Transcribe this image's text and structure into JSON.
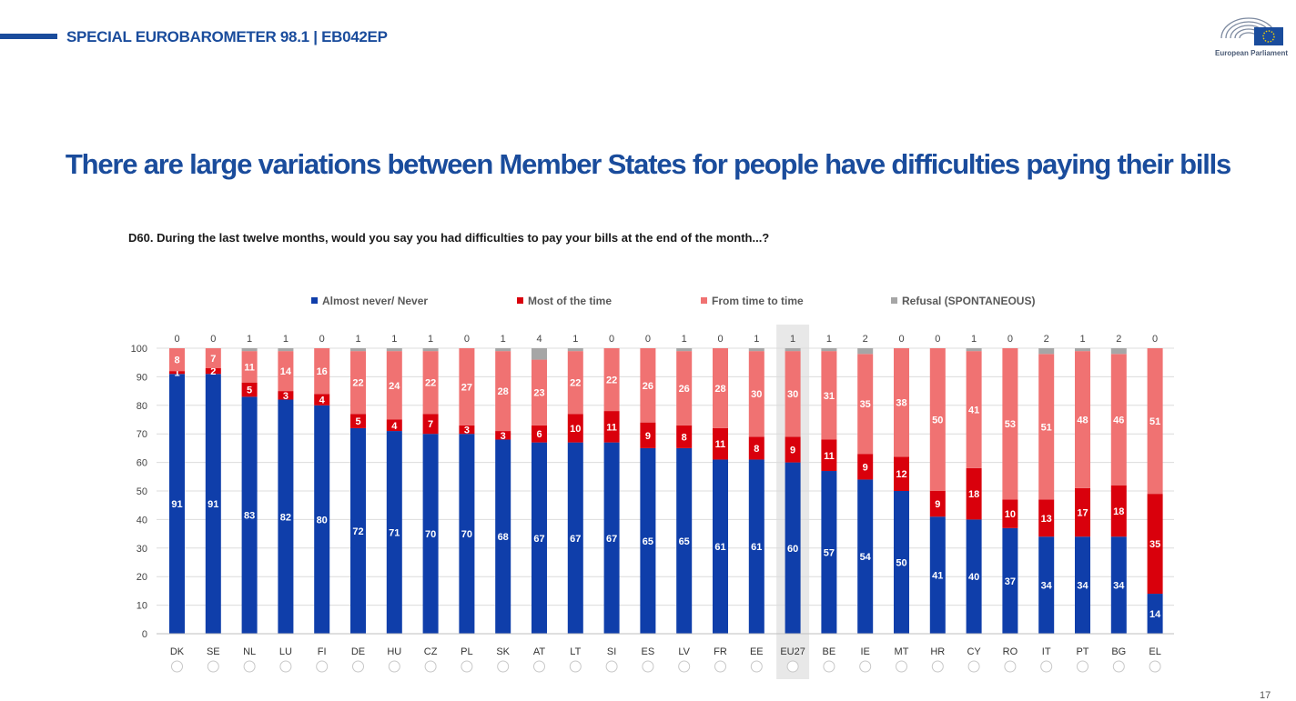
{
  "header": {
    "label": "SPECIAL EUROBAROMETER 98.1 | EB042EP",
    "logo_text": "European Parliament"
  },
  "slide_title": "There are large variations between Member States for people have difficulties paying their bills",
  "question": "D60. During the last twelve months, would you say you had difficulties to pay your bills at the end of the month...?",
  "page_number": "17",
  "colors": {
    "almost_never": "#0f3eaa",
    "most_of_time": "#d9000c",
    "time_to_time": "#f07272",
    "refusal": "#a6a6a6",
    "title": "#1a4c9c",
    "highlight": "#e8e8e8"
  },
  "chart_data": {
    "type": "bar",
    "stacked": true,
    "title": "",
    "xlabel": "",
    "ylabel": "",
    "ylim": [
      0,
      100
    ],
    "yticks": [
      0,
      10,
      20,
      30,
      40,
      50,
      60,
      70,
      80,
      90,
      100
    ],
    "grid": true,
    "legend_position": "top",
    "highlight_category": "EU27",
    "categories": [
      "DK",
      "SE",
      "NL",
      "LU",
      "FI",
      "DE",
      "HU",
      "CZ",
      "PL",
      "SK",
      "AT",
      "LT",
      "SI",
      "ES",
      "LV",
      "FR",
      "EE",
      "EU27",
      "BE",
      "IE",
      "MT",
      "HR",
      "CY",
      "RO",
      "IT",
      "PT",
      "BG",
      "EL"
    ],
    "series": [
      {
        "name": "Almost never/ Never",
        "color_key": "almost_never",
        "values": [
          91,
          91,
          83,
          82,
          80,
          72,
          71,
          70,
          70,
          68,
          67,
          67,
          67,
          65,
          65,
          61,
          61,
          60,
          57,
          54,
          50,
          41,
          40,
          37,
          34,
          34,
          34,
          14
        ]
      },
      {
        "name": "Most of the time",
        "color_key": "most_of_time",
        "values": [
          1,
          2,
          5,
          3,
          4,
          5,
          4,
          7,
          3,
          3,
          6,
          10,
          11,
          9,
          8,
          11,
          8,
          9,
          11,
          9,
          12,
          9,
          18,
          10,
          13,
          17,
          18,
          35
        ]
      },
      {
        "name": "From time to time",
        "color_key": "time_to_time",
        "values": [
          8,
          7,
          11,
          14,
          16,
          22,
          24,
          22,
          27,
          28,
          23,
          22,
          22,
          26,
          26,
          28,
          30,
          30,
          31,
          35,
          38,
          50,
          41,
          53,
          51,
          48,
          46,
          51
        ]
      },
      {
        "name": "Refusal (SPONTANEOUS)",
        "color_key": "refusal",
        "values": [
          0,
          0,
          1,
          1,
          0,
          1,
          1,
          1,
          0,
          1,
          4,
          1,
          0,
          0,
          1,
          0,
          1,
          1,
          1,
          2,
          0,
          0,
          1,
          0,
          2,
          1,
          2,
          0
        ]
      }
    ]
  }
}
